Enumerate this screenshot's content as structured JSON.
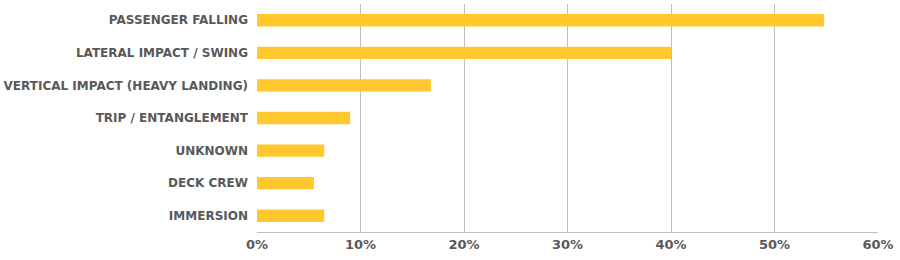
{
  "chart_data": {
    "type": "bar",
    "orientation": "horizontal",
    "categories": [
      "PASSENGER FALLING",
      "LATERAL IMPACT / SWING",
      "VERTICAL IMPACT (HEAVY LANDING)",
      "TRIP / ENTANGLEMENT",
      "UNKNOWN",
      "DECK CREW",
      "IMMERSION"
    ],
    "values": [
      54.8,
      40,
      16.8,
      9,
      6.5,
      5.5,
      6.5
    ],
    "color": "#ffc82e",
    "xlim": [
      0,
      60
    ],
    "xticks": [
      {
        "value": 0,
        "label": "0%"
      },
      {
        "value": 10,
        "label": "10%"
      },
      {
        "value": 20,
        "label": "20%"
      },
      {
        "value": 30,
        "label": "30%"
      },
      {
        "value": 40,
        "label": "40%"
      },
      {
        "value": 50,
        "label": "50%"
      },
      {
        "value": 60,
        "label": "60%"
      }
    ],
    "grid": true
  }
}
